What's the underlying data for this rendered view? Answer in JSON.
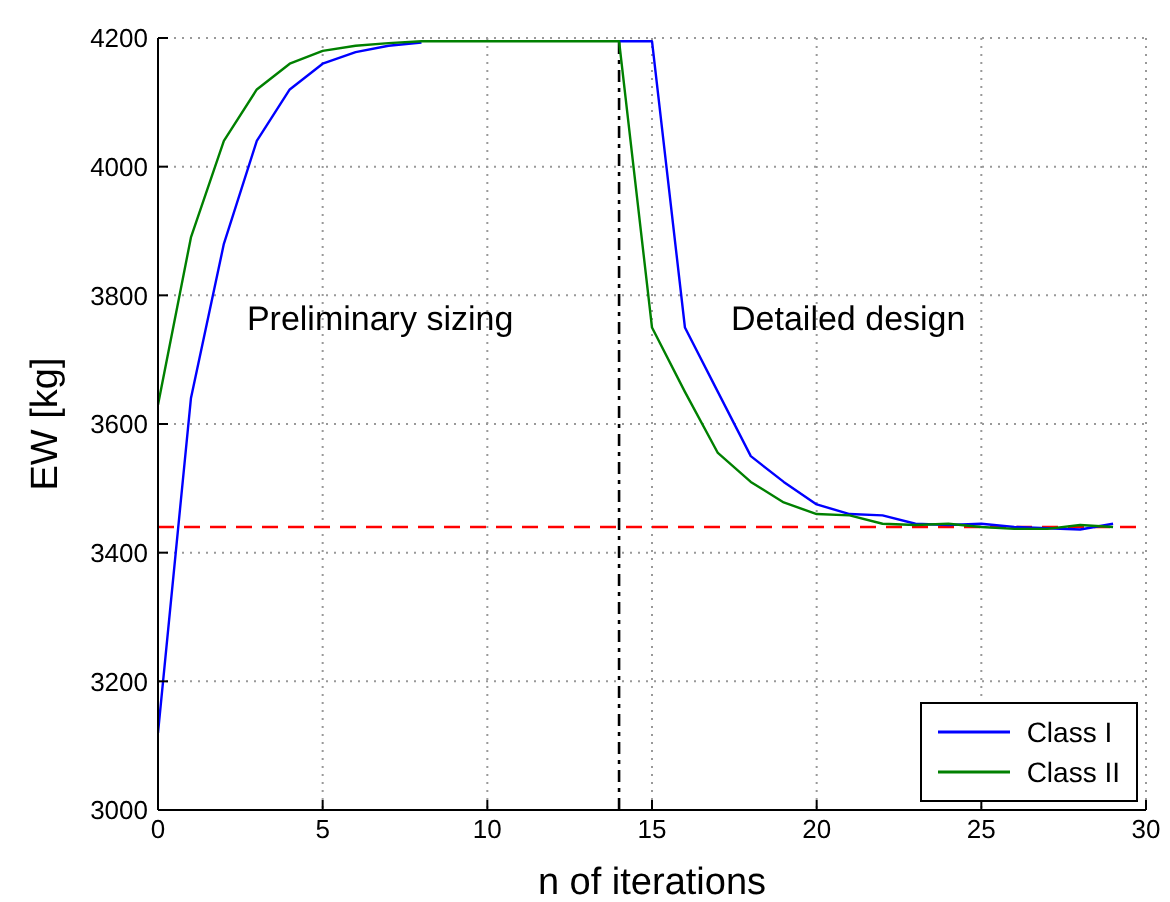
{
  "chart_data": {
    "type": "line",
    "xlabel": "n of iterations",
    "ylabel": "EW [kg]",
    "x": [
      0,
      1,
      2,
      3,
      4,
      5,
      6,
      7,
      8,
      9,
      10,
      11,
      12,
      13,
      14,
      15,
      16,
      17,
      18,
      19,
      20,
      21,
      22,
      23,
      24,
      25,
      26,
      27,
      28,
      29
    ],
    "series": [
      {
        "name": "Class I",
        "color": "#0000ff",
        "values": [
          3120,
          3640,
          3880,
          4040,
          4120,
          4160,
          4178,
          4188,
          4193,
          null,
          null,
          null,
          null,
          null,
          4195,
          4195,
          3750,
          3650,
          3550,
          3510,
          3475,
          3460,
          3458,
          3445,
          3443,
          3445,
          3440,
          3438,
          3436,
          3445
        ]
      },
      {
        "name": "Class II",
        "color": "#008000",
        "values": [
          3630,
          3890,
          4040,
          4120,
          4160,
          4180,
          4188,
          4192,
          4195,
          4195,
          4195,
          4195,
          4195,
          4195,
          4195,
          3750,
          3650,
          3555,
          3510,
          3478,
          3460,
          3458,
          3445,
          3443,
          3445,
          3440,
          3437,
          3437,
          3443,
          3440
        ]
      }
    ],
    "xlim": [
      0,
      30
    ],
    "xticks": [
      0,
      5,
      10,
      15,
      20,
      25,
      30
    ],
    "ylim": [
      3000,
      4200
    ],
    "yticks": [
      3000,
      3200,
      3400,
      3600,
      3800,
      4000,
      4200
    ],
    "ref_lines": [
      {
        "axis": "y",
        "value": 3440,
        "color": "#ff0000",
        "line_style": "dashed"
      },
      {
        "axis": "x",
        "value": 14,
        "color": "#000000",
        "line_style": "dashdot"
      }
    ],
    "annotations": [
      "Preliminary sizing",
      "Detailed design"
    ],
    "grid": true,
    "legend": "bottom right",
    "marker": "none",
    "line_style": "solid"
  }
}
